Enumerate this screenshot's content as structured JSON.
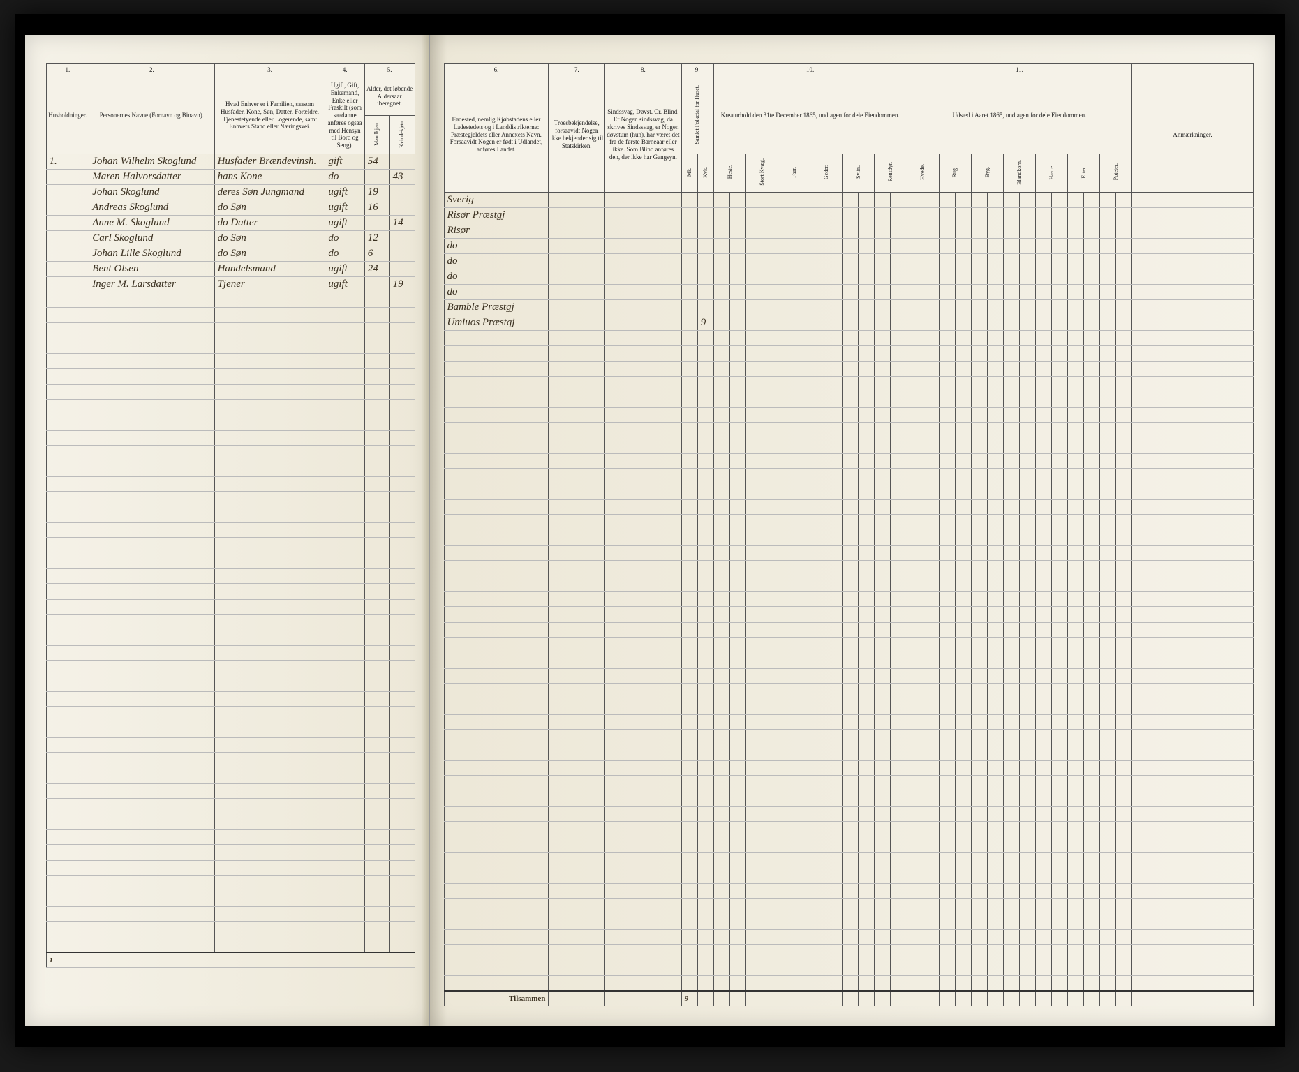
{
  "headers": {
    "col1_num": "1.",
    "col2_num": "2.",
    "col3_num": "3.",
    "col4_num": "4.",
    "col5_num": "5.",
    "col6_num": "6.",
    "col7_num": "7.",
    "col8_num": "8.",
    "col9_num": "9.",
    "col10_num": "10.",
    "col11_num": "11.",
    "col1": "Husholdninger.",
    "col2": "Personernes Navne (Fornavn og Binavn).",
    "col3": "Hvad Enhver er i Familien, saasom Husfader, Kone, Søn, Datter, Forældre, Tjenestetyende eller Logerende, samt Enhvers Stand eller Næringsvei.",
    "col4": "Ugift, Gift, Enkemand, Enke eller Fraskilt (som saadanne anføres ogsaa med Hensyn til Bord og Seng).",
    "col5_top": "Alder, det løbende Aldersaar iberegnet.",
    "col5_m": "Mandkjøn.",
    "col5_k": "Kvindekjøn.",
    "col6": "Fødested, nemlig Kjøbstadens eller Ladestedets og i Landdistrikterne: Præstegjeldets eller Annexets Navn. Forsaavidt Nogen er født i Udlandet, anføres Landet.",
    "col7": "Troesbekjendelse, forsaavidt Nogen ikke bekjender sig til Statskirken.",
    "col8": "Sindssvag, Døvst. Cr. Blind. Er Nogen sindssvag, da skrives Sindssvag, er Nogen døvstum (hun), har været det fra de første Barneaar eller ikke. Som Blind anføres den, der ikke har Gangsyn.",
    "col9_top": "Samlet Folketal for Huset.",
    "col9_m": "Mk.",
    "col9_k": "Kvk.",
    "col10_top": "Kreaturhold den 31te December 1865, undtagen for dele Eiendommen.",
    "col10_heste": "Heste.",
    "col10_kvag": "Stort Kvæg.",
    "col10_faar": "Faar.",
    "col10_geder": "Geder.",
    "col10_svin": "Sviin.",
    "col10_ren": "Rensdyr.",
    "col11_top": "Udsæd i Aaret 1865, undtagen for dele Eiendommen.",
    "col11_hvede": "Hvede.",
    "col11_rug": "Rug.",
    "col11_byg": "Byg.",
    "col11_bland": "Blandkorn.",
    "col11_havre": "Havre.",
    "col11_erter": "Erter.",
    "col11_potet": "Poteter.",
    "col_anm": "Anmærkninger.",
    "totals_label": "Tilsammen"
  },
  "rows": [
    {
      "hh": "1.",
      "name": "Johan Wilhelm Skoglund",
      "relation": "Husfader Brændevinsh.",
      "status": "gift",
      "age_m": "54",
      "age_k": "",
      "birthplace": "Sverig"
    },
    {
      "hh": "",
      "name": "Maren Halvorsdatter",
      "relation": "hans Kone",
      "status": "do",
      "age_m": "",
      "age_k": "43",
      "birthplace": "Risør Præstgj"
    },
    {
      "hh": "",
      "name": "Johan Skoglund",
      "relation": "deres Søn Jungmand",
      "status": "ugift",
      "age_m": "19",
      "age_k": "",
      "birthplace": "Risør"
    },
    {
      "hh": "",
      "name": "Andreas Skoglund",
      "relation": "do Søn",
      "status": "ugift",
      "age_m": "16",
      "age_k": "",
      "birthplace": "do"
    },
    {
      "hh": "",
      "name": "Anne M. Skoglund",
      "relation": "do Datter",
      "status": "ugift",
      "age_m": "",
      "age_k": "14",
      "birthplace": "do"
    },
    {
      "hh": "",
      "name": "Carl Skoglund",
      "relation": "do Søn",
      "status": "do",
      "age_m": "12",
      "age_k": "",
      "birthplace": "do"
    },
    {
      "hh": "",
      "name": "Johan Lille Skoglund",
      "relation": "do Søn",
      "status": "do",
      "age_m": "6",
      "age_k": "",
      "birthplace": "do"
    },
    {
      "hh": "",
      "name": "Bent Olsen",
      "relation": "Handelsmand",
      "status": "ugift",
      "age_m": "24",
      "age_k": "",
      "birthplace": "Bamble Præstgj"
    },
    {
      "hh": "",
      "name": "Inger M. Larsdatter",
      "relation": "Tjener",
      "status": "ugift",
      "age_m": "",
      "age_k": "19",
      "birthplace": "Umiuos Præstgj"
    }
  ],
  "empty_row_count": 43,
  "totals": {
    "hh_total": "1",
    "folk_total": "9"
  },
  "styling": {
    "page_bg": "#f5f2e8",
    "border_color": "#555",
    "row_line_color": "#bbb",
    "handwriting_color": "#3a3020",
    "book_bg": "#000"
  }
}
